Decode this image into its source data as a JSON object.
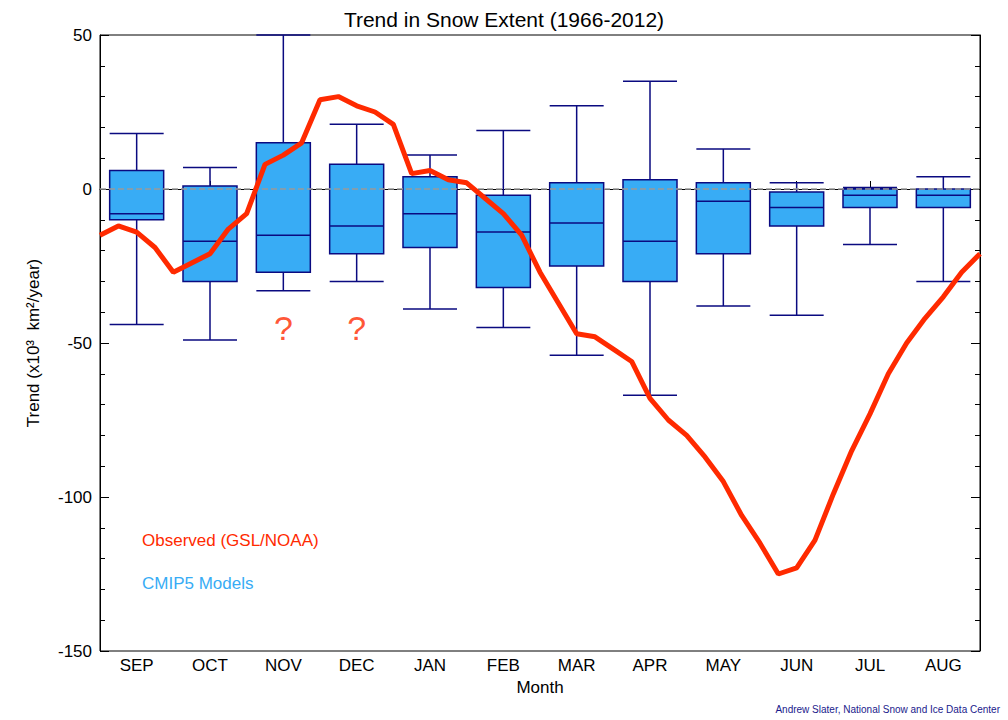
{
  "chart_data": {
    "type": "boxplot",
    "title": "Trend in Snow Extent (1966-2012)",
    "x_label": "Month",
    "y_label": "Trend (x10³  km²/year)",
    "categories": [
      null,
      null,
      "SEP",
      null,
      null,
      null,
      "OCT",
      null,
      null,
      null,
      "NOV",
      null,
      null,
      null,
      "DEC",
      null,
      null,
      null,
      "JAN",
      null,
      null,
      null,
      "FEB",
      null,
      null,
      null,
      "MAR",
      null,
      null,
      null,
      "APR",
      null,
      null,
      null,
      "MAY",
      null,
      null,
      null,
      "JUN",
      null,
      null,
      null,
      "JUL",
      null,
      null,
      null,
      "AUG",
      null,
      null
    ],
    "ylim": [
      -150,
      50
    ],
    "yticks": [
      -150,
      -100,
      -50,
      0,
      50
    ],
    "grid": false,
    "legend": "lower left",
    "reference_y": 0,
    "series": [
      {
        "name": "Observed (GSL/NOAA)",
        "type": "line",
        "color": "#ff2a00",
        "line_style": "solid",
        "values": [
          -15,
          -12,
          -14,
          -19,
          -27,
          -24,
          -21,
          -13,
          -8,
          8,
          11,
          15,
          29,
          30,
          27,
          25,
          21,
          5,
          6,
          3,
          2,
          -3,
          -8,
          -15,
          -27,
          -37,
          -47,
          -48,
          -52,
          -56,
          -68,
          -75,
          -80,
          -87,
          -95,
          -106,
          -115,
          -125,
          -123,
          -114,
          -99,
          -85,
          -73,
          -60,
          -50,
          -42,
          -35,
          -27,
          -21
        ]
      },
      {
        "name": "CMIP5 Models",
        "type": "boxplot",
        "color": "#38acf5",
        "values": [
          null,
          null,
          [
            -44,
            -10,
            -8,
            6,
            18
          ],
          null,
          null,
          null,
          [
            -49,
            -30,
            -17,
            1,
            7
          ],
          null,
          null,
          null,
          [
            -33,
            -27,
            -15,
            15,
            50
          ],
          null,
          null,
          null,
          [
            -30,
            -21,
            -12,
            8,
            21
          ],
          null,
          null,
          null,
          [
            -39,
            -19,
            -8,
            4,
            11
          ],
          null,
          null,
          null,
          [
            -45,
            -32,
            -14,
            -2,
            19
          ],
          null,
          null,
          null,
          [
            -54,
            -25,
            -11,
            2,
            27
          ],
          null,
          null,
          null,
          [
            -67,
            -30,
            -17,
            3,
            35
          ],
          null,
          null,
          null,
          [
            -38,
            -21,
            -4,
            2,
            13
          ],
          null,
          null,
          null,
          [
            -41,
            -12,
            -6,
            -1,
            2
          ],
          null,
          null,
          null,
          [
            -18,
            -6,
            -2,
            0,
            0.5
          ],
          null,
          null,
          null,
          [
            -30,
            -6,
            -2,
            0,
            4
          ],
          null,
          null
        ]
      }
    ],
    "annotations": [
      {
        "text": "?",
        "x": "NOV",
        "y": -45,
        "color": "#ff2a00"
      },
      {
        "text": "?",
        "x": "DEC",
        "y": -45,
        "color": "#ff2a00"
      }
    ],
    "credit": "Andrew Slater, National Snow and Ice Data Center"
  }
}
